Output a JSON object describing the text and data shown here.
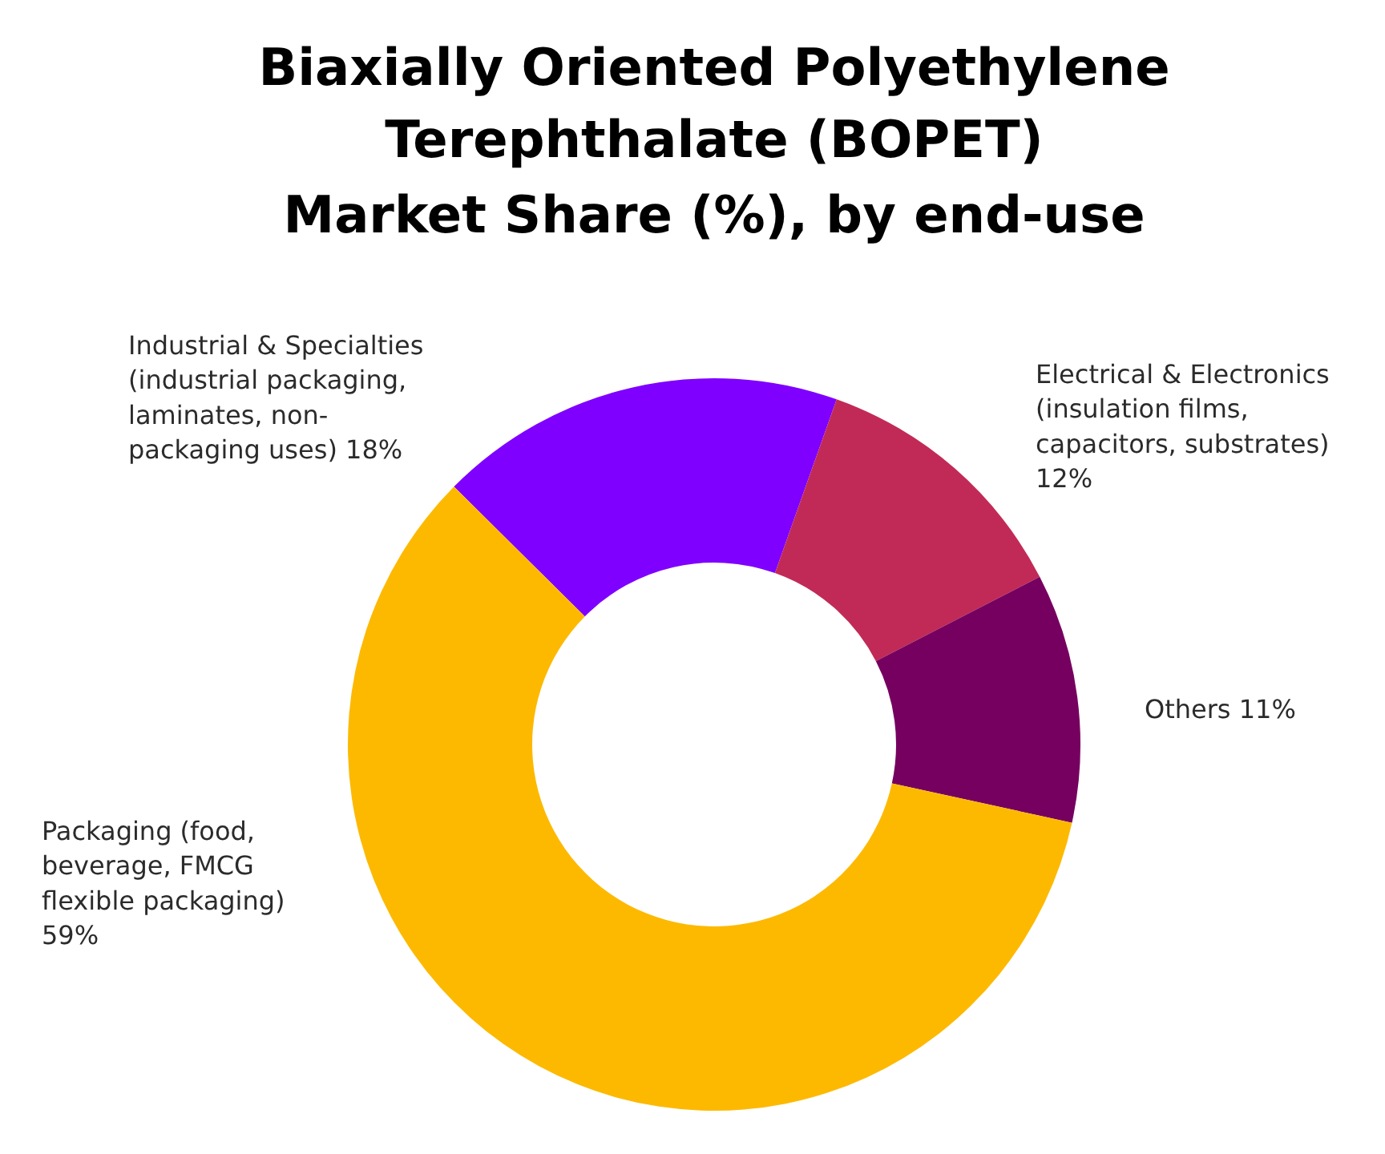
{
  "chart_data": {
    "type": "donut",
    "title": "Biaxially Oriented Polyethylene Terephthalate (BOPET)",
    "subtitle": "Market Share (%), by end-use",
    "categories": [
      "Industrial & Specialties (industrial packaging, laminates, non-packaging uses)",
      "Electrical & Electronics (insulation films, capacitors, substrates)",
      "Others",
      "Packaging (food, beverage, FMCG flexible packaging)"
    ],
    "values": [
      18,
      12,
      11,
      59
    ],
    "value_labels": [
      "18%",
      "12%",
      "11%",
      "59%"
    ],
    "colors": [
      "#7f00ff",
      "#c12a57",
      "#76005f",
      "#fdb900"
    ]
  }
}
